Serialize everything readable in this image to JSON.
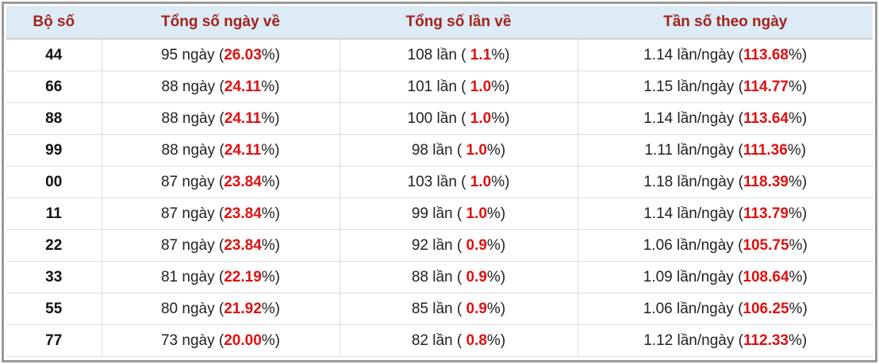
{
  "table": {
    "header": [
      "Bộ số",
      "Tổng số ngày về",
      "Tổng số lần về",
      "Tần số theo ngày"
    ],
    "rows": [
      [
        "44",
        [
          "95 ngày (",
          "26.03",
          "%)"
        ],
        [
          "108 lần ( ",
          "1.1",
          "%)"
        ],
        [
          "1.14 lần/ngày (",
          "113.68",
          "%)"
        ]
      ],
      [
        "66",
        [
          "88 ngày (",
          "24.11",
          "%)"
        ],
        [
          "101 lần ( ",
          "1.0",
          "%)"
        ],
        [
          "1.15 lần/ngày (",
          "114.77",
          "%)"
        ]
      ],
      [
        "88",
        [
          "88 ngày (",
          "24.11",
          "%)"
        ],
        [
          "100 lần ( ",
          "1.0",
          "%)"
        ],
        [
          "1.14 lần/ngày (",
          "113.64",
          "%)"
        ]
      ],
      [
        "99",
        [
          "88 ngày (",
          "24.11",
          "%)"
        ],
        [
          "98 lần ( ",
          "1.0",
          "%)"
        ],
        [
          "1.11 lần/ngày (",
          "111.36",
          "%)"
        ]
      ],
      [
        "00",
        [
          "87 ngày (",
          "23.84",
          "%)"
        ],
        [
          "103 lần ( ",
          "1.0",
          "%)"
        ],
        [
          "1.18 lần/ngày (",
          "118.39",
          "%)"
        ]
      ],
      [
        "11",
        [
          "87 ngày (",
          "23.84",
          "%)"
        ],
        [
          "99 lần ( ",
          "1.0",
          "%)"
        ],
        [
          "1.14 lần/ngày (",
          "113.79",
          "%)"
        ]
      ],
      [
        "22",
        [
          "87 ngày (",
          "23.84",
          "%)"
        ],
        [
          "92 lần ( ",
          "0.9",
          "%)"
        ],
        [
          "1.06 lần/ngày (",
          "105.75",
          "%)"
        ]
      ],
      [
        "33",
        [
          "81 ngày (",
          "22.19",
          "%)"
        ],
        [
          "88 lần ( ",
          "0.9",
          "%)"
        ],
        [
          "1.09 lần/ngày (",
          "108.64",
          "%)"
        ]
      ],
      [
        "55",
        [
          "80 ngày (",
          "21.92",
          "%)"
        ],
        [
          "85 lần ( ",
          "0.9",
          "%)"
        ],
        [
          "1.06 lần/ngày (",
          "106.25",
          "%)"
        ]
      ],
      [
        "77",
        [
          "73 ngày (",
          "20.00",
          "%)"
        ],
        [
          "82 lần ( ",
          "0.8",
          "%)"
        ],
        [
          "1.12 lần/ngày (",
          "112.33",
          "%)"
        ]
      ]
    ]
  }
}
